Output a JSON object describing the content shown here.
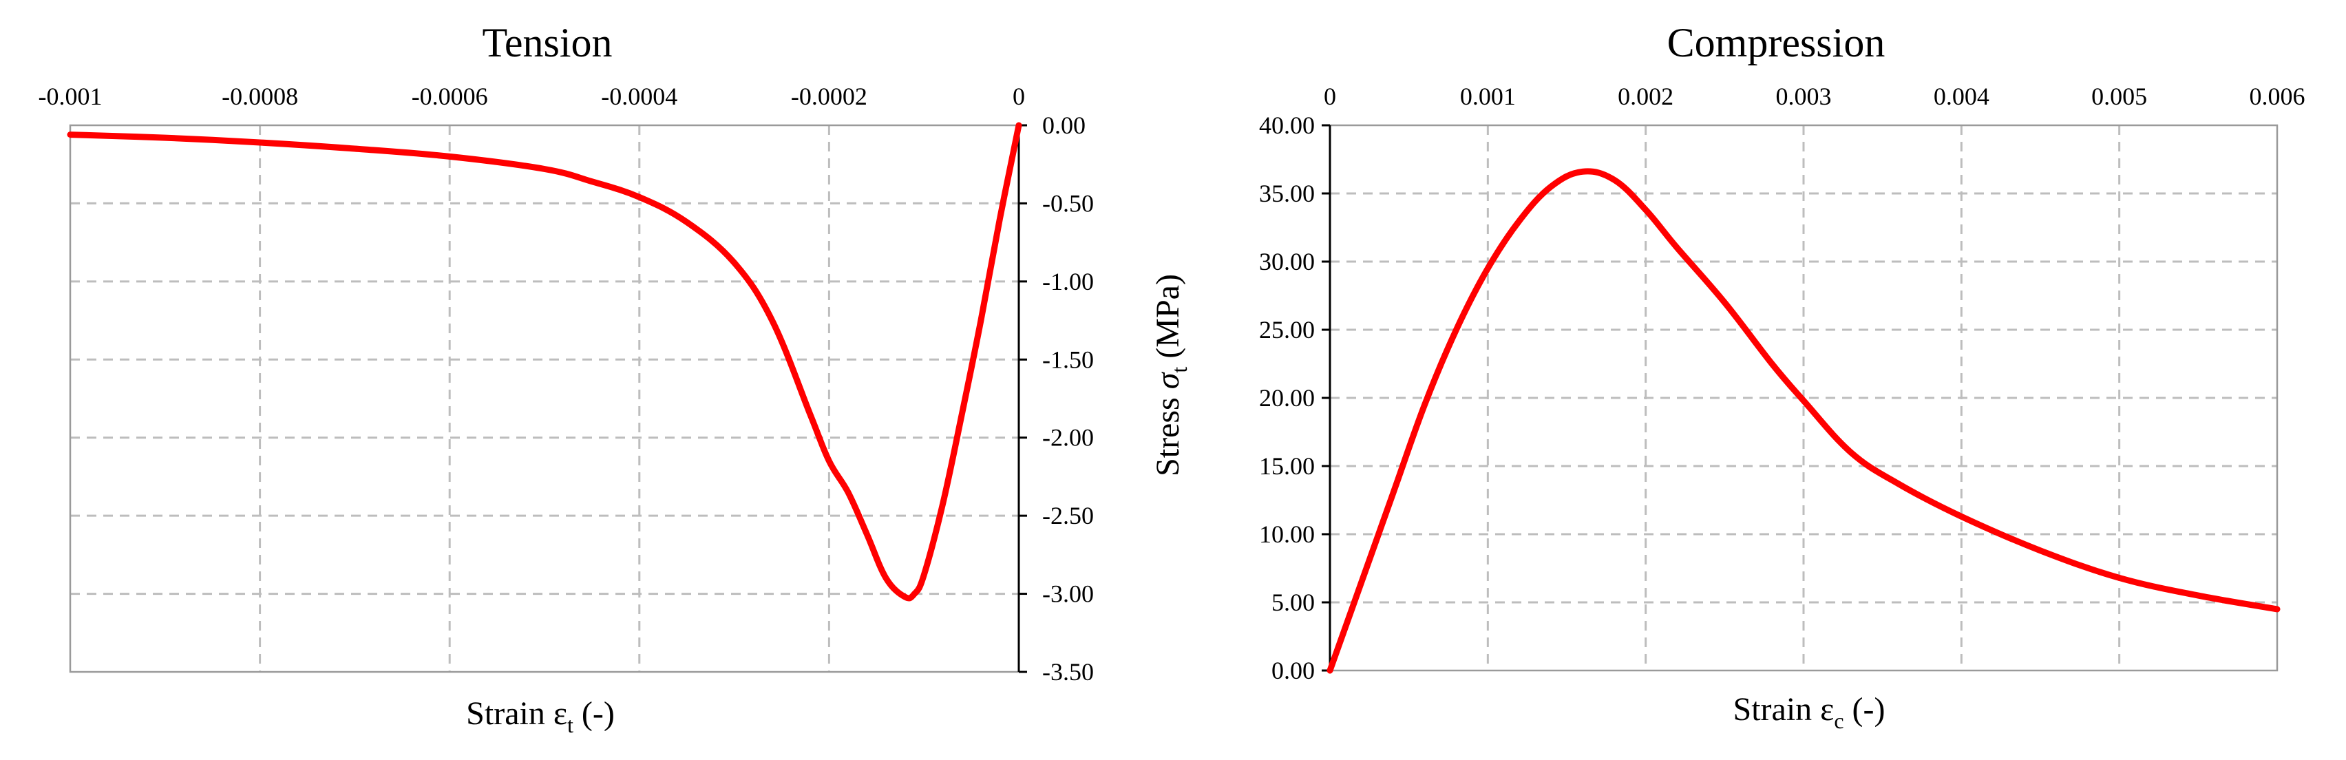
{
  "chart_data": [
    {
      "type": "line",
      "title": "Tension",
      "xlabel": "Strain",
      "xlabel_symbol": "ε",
      "xlabel_sub": "t",
      "xlabel_suffix": "(-)",
      "ylabel": "",
      "xlim": [
        -0.001,
        0
      ],
      "ylim": [
        -3.5,
        0
      ],
      "x_ticks": [
        -0.001,
        -0.0008,
        -0.0006,
        -0.0004,
        -0.0002,
        0
      ],
      "x_tick_labels": [
        "-0.001",
        "-0.0008",
        "-0.0006",
        "-0.0004",
        "-0.0002",
        "0"
      ],
      "y_ticks": [
        0,
        -0.5,
        -1.0,
        -1.5,
        -2.0,
        -2.5,
        -3.0,
        -3.5
      ],
      "y_tick_labels": [
        "0.00",
        "-0.50",
        "-1.00",
        "-1.50",
        "-2.00",
        "-2.50",
        "-3.00",
        "-3.50"
      ],
      "x_axis_position": "top",
      "y_axis_position": "right",
      "grid": true,
      "line_color": "#ff0000",
      "series": [
        {
          "x": [
            -0.001,
            -0.0009,
            -0.0008,
            -0.0007,
            -0.0006,
            -0.0005,
            -0.00045,
            -0.0004,
            -0.00035,
            -0.0003,
            -0.00026,
            -0.00022,
            -0.0002,
            -0.00018,
            -0.00016,
            -0.00014,
            -0.00012,
            -0.00011,
            -0.0001,
            -8e-05,
            -6e-05,
            -4e-05,
            -2e-05,
            0
          ],
          "y": [
            -0.06,
            -0.08,
            -0.11,
            -0.15,
            -0.2,
            -0.28,
            -0.36,
            -0.46,
            -0.62,
            -0.88,
            -1.25,
            -1.85,
            -2.15,
            -2.35,
            -2.62,
            -2.9,
            -3.02,
            -3.0,
            -2.88,
            -2.42,
            -1.85,
            -1.25,
            -0.6,
            0
          ]
        }
      ]
    },
    {
      "type": "line",
      "title": "Compression",
      "xlabel": "Strain",
      "xlabel_symbol": "ε",
      "xlabel_sub": "c",
      "xlabel_suffix": "(-)",
      "ylabel": "Stress",
      "ylabel_symbol": "σ",
      "ylabel_sub": "t",
      "ylabel_suffix": "(MPa)",
      "xlim": [
        0,
        0.006
      ],
      "ylim": [
        0,
        40
      ],
      "x_ticks": [
        0,
        0.001,
        0.002,
        0.003,
        0.004,
        0.005,
        0.006
      ],
      "x_tick_labels": [
        "0",
        "0.001",
        "0.002",
        "0.003",
        "0.004",
        "0.005",
        "0.006"
      ],
      "y_ticks": [
        0,
        5,
        10,
        15,
        20,
        25,
        30,
        35,
        40
      ],
      "y_tick_labels": [
        "0.00",
        "5.00",
        "10.00",
        "15.00",
        "20.00",
        "25.00",
        "30.00",
        "35.00",
        "40.00"
      ],
      "x_axis_position": "top",
      "y_axis_position": "left",
      "grid": true,
      "line_color": "#ff0000",
      "series": [
        {
          "x": [
            0,
            0.0002,
            0.0004,
            0.0006,
            0.0008,
            0.001,
            0.0012,
            0.0014,
            0.0016,
            0.0018,
            0.002,
            0.0022,
            0.0025,
            0.0028,
            0.003,
            0.0033,
            0.0036,
            0.004,
            0.0045,
            0.005,
            0.0055,
            0.006
          ],
          "y": [
            0,
            6.5,
            13.0,
            19.5,
            25.0,
            29.5,
            33.0,
            35.5,
            36.6,
            36.0,
            33.8,
            31.0,
            27.0,
            22.5,
            19.8,
            16.0,
            13.7,
            11.3,
            8.8,
            6.8,
            5.5,
            4.5
          ]
        }
      ]
    }
  ]
}
